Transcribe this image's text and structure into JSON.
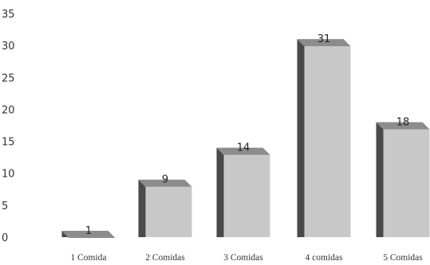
{
  "chart_data": {
    "type": "bar",
    "categories": [
      "1 Comida",
      "2 Comidas",
      "3 Comidas",
      "4 comidas",
      "5 Comidas"
    ],
    "values": [
      1,
      9,
      14,
      31,
      18
    ],
    "data_labels": [
      "1",
      "9",
      "14",
      "31",
      "18"
    ],
    "ylim": [
      0,
      35
    ],
    "yticks": [
      "0",
      "5",
      "10",
      "15",
      "20",
      "25",
      "30",
      "35"
    ],
    "grid": false,
    "legend": "none",
    "style": "3d",
    "colors": {
      "front": "#c8c8c8",
      "top": "#8c8c8c",
      "side": "#4a4a4a"
    }
  }
}
